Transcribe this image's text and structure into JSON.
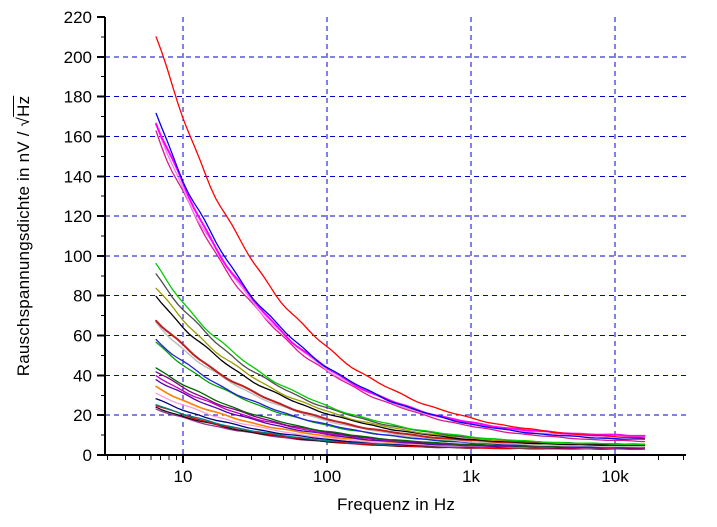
{
  "figure": {
    "background": "#FFFFFF"
  },
  "chart_data": {
    "type": "line",
    "title": "",
    "xlabel": "Frequenz in Hz",
    "ylabel": "Rauschspannungsdichte in nV / √Hz",
    "ylabel_prefix": "Rauschspannungsdichte in nV / ",
    "ylabel_sqrt": "√",
    "ylabel_sqrt_arg": "Hz",
    "x_scale": "log",
    "xlim": [
      3,
      30000
    ],
    "ylim": [
      0,
      220
    ],
    "y_tick_step": 20,
    "y_minor_step": 10,
    "x_major_ticks": [
      10,
      100,
      1000,
      10000
    ],
    "x_tick_labels": [
      "10",
      "100",
      "1k",
      "10k"
    ],
    "grid": {
      "color": "#0000CC",
      "style": "dashed",
      "x_lines": [
        10,
        100,
        1000,
        10000
      ],
      "y_lines": [
        20,
        40,
        60,
        80,
        100,
        120,
        140,
        160,
        180,
        200
      ]
    },
    "axis_color": "#000000",
    "legend": "none",
    "frequencies_hz": [
      6.5,
      10,
      20,
      50,
      100,
      200,
      500,
      1000,
      2000,
      5000,
      10000,
      16000
    ],
    "series": [
      {
        "name": "curve-01",
        "color": "#FF0000",
        "width": 1.3,
        "start": 210,
        "floor": 7.5,
        "values": [
          210,
          169.4,
          119.9,
          76.0,
          54.0,
          38.6,
          25.1,
          18.5,
          14.1,
          10.6,
          9.2,
          8.6
        ]
      },
      {
        "name": "curve-02",
        "color": "#0000EE",
        "width": 1.3,
        "start": 172,
        "floor": 7,
        "values": [
          172,
          138.7,
          98.2,
          62.4,
          44.4,
          31.8,
          20.8,
          15.5,
          12.0,
          9.3,
          8.3,
          7.8
        ]
      },
      {
        "name": "curve-03",
        "color": "#FF00FF",
        "width": 2,
        "start": 168,
        "floor": 9,
        "values": [
          168,
          135.5,
          96.1,
          61.2,
          43.7,
          31.6,
          21.1,
          16.2,
          13.1,
          10.8,
          10.0,
          9.6
        ]
      },
      {
        "name": "curve-04",
        "color": "#EE82EE",
        "width": 1.3,
        "start": 166,
        "floor": 8,
        "values": [
          166,
          133.9,
          94.9,
          60.3,
          43.0,
          30.9,
          20.5,
          15.6,
          12.4,
          10.0,
          9.1,
          8.7
        ]
      },
      {
        "name": "curve-05",
        "color": "#D81B8C",
        "width": 1.3,
        "start": 163,
        "floor": 6,
        "values": [
          163,
          131.5,
          93.1,
          59.0,
          42.0,
          30.0,
          19.5,
          14.4,
          11.1,
          8.4,
          7.3,
          6.8
        ]
      },
      {
        "name": "curve-06",
        "color": "#00CC00",
        "width": 1.3,
        "start": 95,
        "floor": 5,
        "values": [
          95,
          76.6,
          54.3,
          34.6,
          24.7,
          17.8,
          11.9,
          9.1,
          7.4,
          6.1,
          5.6,
          5.4
        ]
      },
      {
        "name": "curve-07",
        "color": "#4D4D4D",
        "width": 1.3,
        "start": 91,
        "floor": 5,
        "values": [
          91,
          73.4,
          52.0,
          33.1,
          23.7,
          17.1,
          11.5,
          8.9,
          7.2,
          6.0,
          5.5,
          5.3
        ]
      },
      {
        "name": "curve-08",
        "color": "#9C9C00",
        "width": 1.3,
        "start": 84,
        "floor": 5,
        "values": [
          84,
          67.8,
          48.1,
          30.6,
          22.0,
          15.9,
          10.8,
          8.4,
          6.9,
          5.8,
          5.4,
          5.3
        ]
      },
      {
        "name": "curve-09",
        "color": "#000000",
        "width": 1.3,
        "start": 80,
        "floor": 4.5,
        "values": [
          80,
          64.6,
          45.8,
          29.1,
          20.8,
          15.1,
          10.1,
          7.8,
          6.4,
          5.3,
          4.9,
          4.8
        ]
      },
      {
        "name": "curve-10",
        "color": "#C02020",
        "width": 2,
        "start": 68,
        "floor": 5,
        "values": [
          68,
          54.9,
          39.0,
          25.0,
          18.0,
          13.2,
          9.2,
          7.4,
          6.3,
          5.6,
          5.3,
          5.2
        ]
      },
      {
        "name": "curve-11",
        "color": "#BFBFBF",
        "width": 1.5,
        "start": 66,
        "floor": 4,
        "values": [
          66,
          53.3,
          37.8,
          24.1,
          17.3,
          12.5,
          8.5,
          6.6,
          5.5,
          4.6,
          4.3,
          4.2
        ]
      },
      {
        "name": "curve-12",
        "color": "#2222DD",
        "width": 1.3,
        "start": 58,
        "floor": 4,
        "values": [
          58,
          46.8,
          33.2,
          21.2,
          15.3,
          11.2,
          7.7,
          6.1,
          5.2,
          4.5,
          4.3,
          4.2
        ]
      },
      {
        "name": "curve-13",
        "color": "#00A000",
        "width": 1.3,
        "start": 56,
        "floor": 4.5,
        "values": [
          56,
          45.2,
          32.1,
          20.6,
          14.9,
          11.0,
          7.8,
          6.3,
          5.5,
          4.9,
          4.7,
          4.6
        ]
      },
      {
        "name": "curve-14",
        "color": "#006400",
        "width": 1.3,
        "start": 44,
        "floor": 4,
        "values": [
          44,
          35.6,
          25.3,
          16.3,
          11.9,
          8.9,
          6.4,
          5.3,
          4.7,
          4.3,
          4.1,
          4.1
        ]
      },
      {
        "name": "curve-15",
        "color": "#800080",
        "width": 1.3,
        "start": 42,
        "floor": 4,
        "values": [
          42,
          33.9,
          24.2,
          15.6,
          11.4,
          8.5,
          6.2,
          5.2,
          4.7,
          4.3,
          4.1,
          4.1
        ]
      },
      {
        "name": "curve-16",
        "color": "#C000C0",
        "width": 1.3,
        "start": 40,
        "floor": 4,
        "values": [
          40,
          32.3,
          23.0,
          14.9,
          10.9,
          8.2,
          6.1,
          5.1,
          4.6,
          4.3,
          4.1,
          4.1
        ]
      },
      {
        "name": "curve-17",
        "color": "#5500AA",
        "width": 1.3,
        "start": 38,
        "floor": 3.5,
        "values": [
          38,
          30.7,
          21.8,
          14.1,
          10.3,
          7.6,
          5.5,
          4.6,
          4.1,
          3.7,
          3.6,
          3.6
        ]
      },
      {
        "name": "curve-18",
        "color": "#FF8000",
        "width": 1.6,
        "start": 34,
        "floor": 4,
        "values": [
          34,
          27.5,
          19.7,
          12.8,
          9.5,
          7.3,
          5.5,
          4.8,
          4.4,
          4.2,
          4.1,
          4.1
        ]
      },
      {
        "name": "curve-19",
        "color": "#FF9BDD",
        "width": 1.3,
        "start": 31,
        "floor": 3.5,
        "values": [
          31,
          25.1,
          17.9,
          11.6,
          8.6,
          6.5,
          4.9,
          4.3,
          3.9,
          3.6,
          3.6,
          3.5
        ]
      },
      {
        "name": "curve-20",
        "color": "#000080",
        "width": 1.3,
        "start": 28,
        "floor": 3.5,
        "values": [
          28,
          22.7,
          16.2,
          10.6,
          7.9,
          6.1,
          4.7,
          4.1,
          3.8,
          3.6,
          3.5,
          3.5
        ]
      },
      {
        "name": "curve-21",
        "color": "#008080",
        "width": 1.3,
        "start": 25.5,
        "floor": 3.5,
        "values": [
          25.5,
          20.7,
          14.8,
          9.7,
          7.3,
          5.7,
          4.5,
          4.0,
          3.8,
          3.6,
          3.5,
          3.5
        ]
      },
      {
        "name": "curve-22",
        "color": "#EE0000",
        "width": 1.3,
        "start": 25,
        "floor": 3,
        "values": [
          25,
          20.2,
          14.5,
          9.4,
          7.0,
          5.4,
          4.1,
          3.6,
          3.3,
          3.1,
          3.1,
          3.0
        ]
      },
      {
        "name": "curve-23",
        "color": "#111111",
        "width": 1.3,
        "start": 24,
        "floor": 3,
        "values": [
          24,
          19.4,
          13.9,
          9.1,
          6.8,
          5.2,
          4.0,
          3.6,
          3.3,
          3.1,
          3.1,
          3.0
        ]
      },
      {
        "name": "curve-24",
        "color": "#993399",
        "width": 1.3,
        "start": 23,
        "floor": 3,
        "values": [
          23,
          18.6,
          13.3,
          8.8,
          6.5,
          5.1,
          4.0,
          3.5,
          3.3,
          3.1,
          3.1,
          3.0
        ]
      }
    ]
  }
}
